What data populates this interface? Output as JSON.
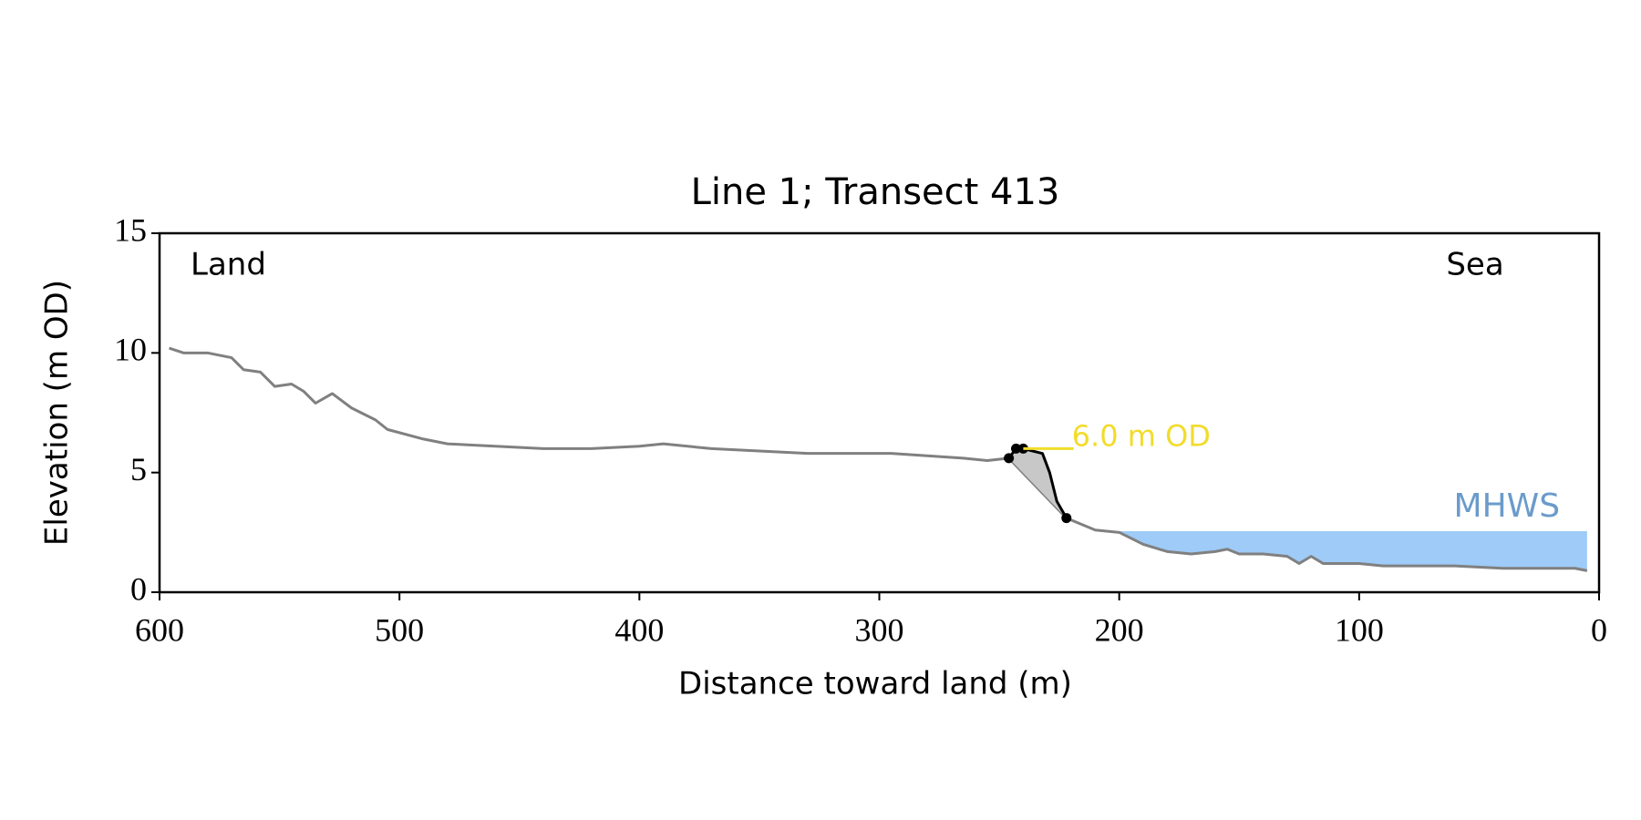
{
  "chart_data": {
    "type": "line",
    "title": "Line 1; Transect 413",
    "xlabel": "Distance toward land (m)",
    "ylabel": "Elevation (m OD)",
    "xlim": [
      600,
      0
    ],
    "ylim": [
      0,
      15
    ],
    "xticks": [
      600,
      500,
      400,
      300,
      200,
      100,
      0
    ],
    "yticks": [
      0,
      5,
      10,
      15
    ],
    "annotations": [
      "Land",
      "Sea"
    ],
    "series": [
      {
        "type": "line",
        "color": "#808080",
        "x": [
          596,
          590,
          580,
          570,
          565,
          558,
          552,
          545,
          540,
          535,
          528,
          520,
          510,
          505,
          490,
          480,
          460,
          440,
          420,
          400,
          390,
          370,
          350,
          330,
          310,
          295,
          280,
          265,
          255,
          246,
          222,
          210,
          200,
          190,
          180,
          170,
          160,
          155,
          150,
          140,
          130,
          125,
          120,
          115,
          100,
          90,
          80,
          70,
          60,
          40,
          20,
          10,
          5
        ],
        "values": [
          10.2,
          10.0,
          10.0,
          9.8,
          9.3,
          9.2,
          8.6,
          8.7,
          8.4,
          7.9,
          8.3,
          7.7,
          7.2,
          6.8,
          6.4,
          6.2,
          6.1,
          6.0,
          6.0,
          6.1,
          6.2,
          6.0,
          5.9,
          5.8,
          5.8,
          5.8,
          5.7,
          5.6,
          5.5,
          5.6,
          3.1,
          2.6,
          2.5,
          2.0,
          1.7,
          1.6,
          1.7,
          1.8,
          1.6,
          1.6,
          1.5,
          1.2,
          1.5,
          1.2,
          1.2,
          1.1,
          1.1,
          1.1,
          1.1,
          1.0,
          1.0,
          1.0,
          0.9
        ]
      },
      {
        "type": "line",
        "color": "#000000",
        "fill": "#c8c8c8",
        "x": [
          246,
          243,
          240,
          236,
          232,
          229,
          226,
          222
        ],
        "values": [
          5.6,
          6.0,
          6.0,
          5.9,
          5.8,
          5.0,
          3.8,
          3.1
        ]
      },
      {
        "type": "scatter",
        "color": "#000000",
        "x": [
          246,
          243,
          240,
          222
        ],
        "values": [
          5.6,
          6.0,
          6.0,
          3.1
        ]
      }
    ],
    "threshold": {
      "label": "6.0 m OD",
      "value": 6.0,
      "x": [
        240,
        219
      ],
      "color": "#f2dc2a"
    },
    "mhws": {
      "label": "MHWS",
      "value": 2.55,
      "x": [
        200,
        5
      ],
      "color": "#9ecbf7",
      "label_color": "#6a9bcb"
    }
  }
}
